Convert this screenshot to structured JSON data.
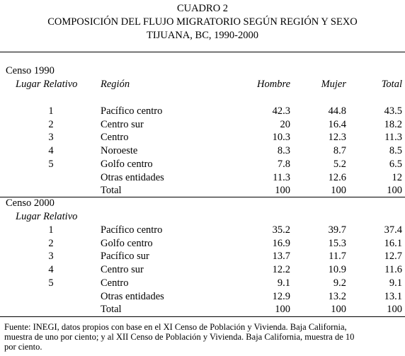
{
  "title": {
    "lines": [
      "CUADRO 2",
      "COMPOSICIÓN DEL FLUJO MIGRATORIO SEGÚN REGIÓN Y SEXO",
      "TIJUANA, BC, 1990-2000"
    ]
  },
  "sections": [
    {
      "label": "Censo 1990",
      "headers": [
        "Lugar Relativo",
        "Región",
        "Hombre",
        "Mujer",
        "Total"
      ],
      "rows": [
        {
          "rank": 1,
          "region": "Pacífico centro",
          "hombre": 42.3,
          "mujer": 44.8,
          "total": 43.5
        },
        {
          "rank": 2,
          "region": "Centro sur",
          "hombre": 20,
          "mujer": 16.4,
          "total": 18.2
        },
        {
          "rank": 3,
          "region": "Centro",
          "hombre": 10.3,
          "mujer": 12.3,
          "total": 11.3
        },
        {
          "rank": 4,
          "region": "Noroeste",
          "hombre": 8.3,
          "mujer": 8.7,
          "total": 8.5
        },
        {
          "rank": 5,
          "region": "Golfo centro",
          "hombre": 7.8,
          "mujer": 5.2,
          "total": 6.5
        },
        {
          "region": "Otras entidades",
          "hombre": 11.3,
          "mujer": 12.6,
          "total": 12
        },
        {
          "region": "Total",
          "hombre": 100,
          "mujer": 100,
          "total": 100
        }
      ]
    },
    {
      "label": "Censo 2000",
      "headers": [
        "Lugar Relativo"
      ],
      "rows": [
        {
          "rank": 1,
          "region": "Pacífico centro",
          "hombre": 35.2,
          "mujer": 39.7,
          "total": 37.4
        },
        {
          "rank": 2,
          "region": "Golfo centro",
          "hombre": 16.9,
          "mujer": 15.3,
          "total": 16.1
        },
        {
          "rank": 3,
          "region": "Pacífico sur",
          "hombre": 13.7,
          "mujer": 11.7,
          "total": 12.7
        },
        {
          "rank": 4,
          "region": "Centro sur",
          "hombre": 12.2,
          "mujer": 10.9,
          "total": 11.6
        },
        {
          "rank": 5,
          "region": "Centro",
          "hombre": 9.1,
          "mujer": 9.2,
          "total": 9.1
        },
        {
          "region": "Otras entidades",
          "hombre": 12.9,
          "mujer": 13.2,
          "total": 13.1
        },
        {
          "region": "Total",
          "hombre": 100,
          "mujer": 100,
          "total": 100
        }
      ]
    }
  ],
  "footnote": {
    "lines": [
      "Fuente: INEGI, datos propios con base en el XI Censo de Población y Vivienda. Baja California,",
      "muestra de uno por ciento; y al XII Censo de Población y Vivienda. Baja California, muestra de 10",
      "por ciento."
    ]
  }
}
